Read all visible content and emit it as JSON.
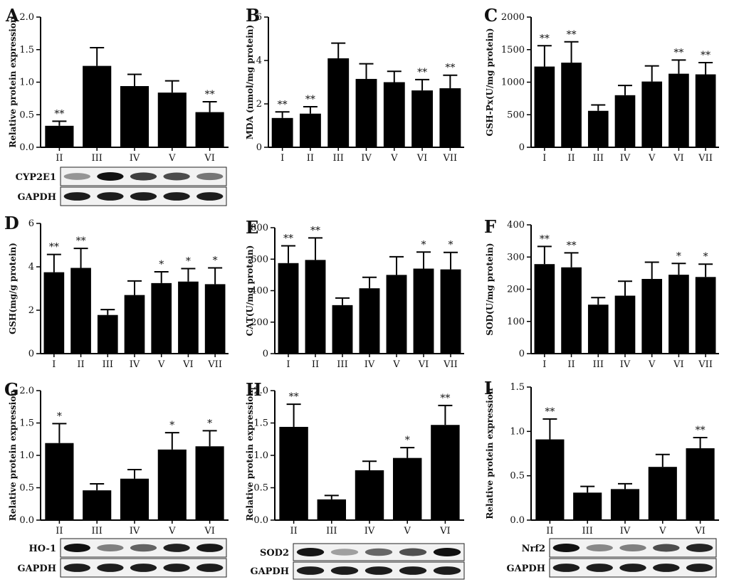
{
  "chart_data": [
    {
      "type": "bar",
      "panel": "A",
      "ylabel": "Relative protein expression",
      "ylim": [
        0,
        2.0
      ],
      "yticks": [
        "0.0",
        "0.5",
        "1.0",
        "1.5",
        "2.0"
      ],
      "categories": [
        "II",
        "III",
        "IV",
        "V",
        "VI"
      ],
      "values": [
        0.33,
        1.25,
        0.94,
        0.84,
        0.54
      ],
      "errors": [
        0.07,
        0.28,
        0.18,
        0.18,
        0.16
      ],
      "significance": [
        "**",
        "",
        "",
        "",
        "**"
      ],
      "blots": [
        "CYP2E1",
        "GAPDH"
      ]
    },
    {
      "type": "bar",
      "panel": "B",
      "ylabel": "MDA (nmol/mg protein)",
      "ylim": [
        0,
        6
      ],
      "yticks": [
        "0",
        "2",
        "4",
        "6"
      ],
      "categories": [
        "I",
        "II",
        "III",
        "IV",
        "V",
        "VI",
        "VII"
      ],
      "values": [
        1.35,
        1.55,
        4.1,
        3.15,
        3.0,
        2.62,
        2.72
      ],
      "errors": [
        0.28,
        0.32,
        0.7,
        0.7,
        0.5,
        0.5,
        0.6
      ],
      "significance": [
        "**",
        "**",
        "",
        "",
        "",
        "**",
        "**"
      ]
    },
    {
      "type": "bar",
      "panel": "C",
      "ylabel": "GSH-Px(U/mg protein)",
      "ylim": [
        0,
        2000
      ],
      "yticks": [
        "0",
        "500",
        "1000",
        "1500",
        "2000"
      ],
      "categories": [
        "I",
        "II",
        "III",
        "IV",
        "V",
        "VI",
        "VII"
      ],
      "values": [
        1240,
        1300,
        560,
        800,
        1010,
        1130,
        1120
      ],
      "errors": [
        320,
        320,
        90,
        150,
        240,
        210,
        180
      ],
      "significance": [
        "**",
        "**",
        "",
        "",
        "",
        "**",
        "**"
      ]
    },
    {
      "type": "bar",
      "panel": "D",
      "ylabel": "GSH(mg/g protein)",
      "ylim": [
        0,
        6
      ],
      "yticks": [
        "0",
        "2",
        "4",
        "6"
      ],
      "categories": [
        "I",
        "II",
        "III",
        "IV",
        "V",
        "VI",
        "VII"
      ],
      "values": [
        3.75,
        3.95,
        1.78,
        2.7,
        3.25,
        3.32,
        3.2
      ],
      "errors": [
        0.82,
        0.9,
        0.25,
        0.65,
        0.52,
        0.6,
        0.75
      ],
      "significance": [
        "**",
        "**",
        "",
        "",
        "*",
        "*",
        "*"
      ]
    },
    {
      "type": "bar",
      "panel": "E",
      "ylabel": "CAT(U/mg protein)",
      "ylim": [
        0,
        800
      ],
      "yticks": [
        "0",
        "200",
        "400",
        "600",
        "800"
      ],
      "categories": [
        "I",
        "II",
        "III",
        "IV",
        "V",
        "VI",
        "VII"
      ],
      "values": [
        575,
        595,
        308,
        415,
        500,
        540,
        535
      ],
      "errors": [
        110,
        140,
        45,
        70,
        115,
        105,
        108
      ],
      "significance": [
        "**",
        "**",
        "",
        "",
        "",
        "*",
        "*"
      ]
    },
    {
      "type": "bar",
      "panel": "F",
      "ylabel": "SOD(U/mg protein)",
      "ylim": [
        0,
        400
      ],
      "yticks": [
        "0",
        "100",
        "200",
        "300",
        "400"
      ],
      "categories": [
        "I",
        "II",
        "III",
        "IV",
        "V",
        "VI",
        "VII"
      ],
      "values": [
        278,
        268,
        152,
        180,
        232,
        245,
        238
      ],
      "errors": [
        55,
        45,
        22,
        45,
        52,
        35,
        40
      ],
      "significance": [
        "**",
        "**",
        "",
        "",
        "",
        "*",
        "*"
      ]
    },
    {
      "type": "bar",
      "panel": "G",
      "ylabel": "Relative protein expression",
      "ylim": [
        0,
        2.0
      ],
      "yticks": [
        "0.0",
        "0.5",
        "1.0",
        "1.5",
        "2.0"
      ],
      "categories": [
        "II",
        "III",
        "IV",
        "V",
        "VI"
      ],
      "values": [
        1.19,
        0.46,
        0.64,
        1.09,
        1.14
      ],
      "errors": [
        0.3,
        0.1,
        0.14,
        0.26,
        0.24
      ],
      "significance": [
        "*",
        "",
        "",
        "*",
        "*"
      ],
      "blots": [
        "HO-1",
        "GAPDH"
      ]
    },
    {
      "type": "bar",
      "panel": "H",
      "ylabel": "Relative protein expression",
      "ylim": [
        0,
        2.0
      ],
      "yticks": [
        "0.0",
        "0.5",
        "1.0",
        "1.5",
        "2.0"
      ],
      "categories": [
        "II",
        "III",
        "IV",
        "V",
        "VI"
      ],
      "values": [
        1.44,
        0.32,
        0.77,
        0.96,
        1.47
      ],
      "errors": [
        0.35,
        0.06,
        0.14,
        0.16,
        0.3
      ],
      "significance": [
        "**",
        "",
        "",
        "*",
        "**"
      ],
      "blots": [
        "SOD2",
        "GAPDH"
      ]
    },
    {
      "type": "bar",
      "panel": "I",
      "ylabel": "Relative protein expression",
      "ylim": [
        0,
        1.5
      ],
      "yticks": [
        "0.0",
        "0.5",
        "1.0",
        "1.5"
      ],
      "categories": [
        "II",
        "III",
        "IV",
        "V",
        "VI"
      ],
      "values": [
        0.91,
        0.31,
        0.35,
        0.6,
        0.81
      ],
      "errors": [
        0.23,
        0.07,
        0.06,
        0.14,
        0.12
      ],
      "significance": [
        "**",
        "",
        "",
        "",
        "**"
      ],
      "blots": [
        "Nrf2",
        "GAPDH"
      ]
    }
  ]
}
